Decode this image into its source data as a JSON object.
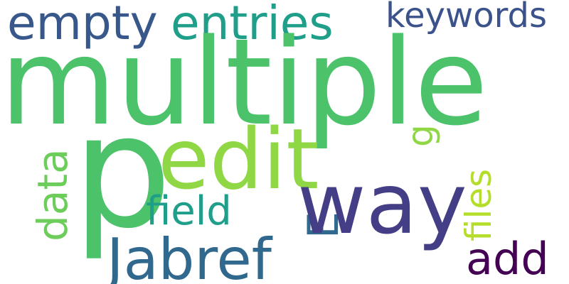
{
  "words": [
    {
      "key": "multiple",
      "text": "multiple",
      "color": "#4cc26b"
    },
    {
      "key": "p",
      "text": "p",
      "color": "#4cc26b"
    },
    {
      "key": "edit",
      "text": "edit",
      "color": "#8fd744"
    },
    {
      "key": "way",
      "text": "way",
      "color": "#433e85"
    },
    {
      "key": "empty",
      "text": "empty",
      "color": "#38588c"
    },
    {
      "key": "entries",
      "text": "entries",
      "color": "#1f9e89"
    },
    {
      "key": "keywords",
      "text": "keywords",
      "color": "#3b528b"
    },
    {
      "key": "jabref",
      "text": "Jabref",
      "color": "#31688e"
    },
    {
      "key": "field",
      "text": "field",
      "color": "#1f9e89"
    },
    {
      "key": "add",
      "text": "add",
      "color": "#440154"
    },
    {
      "key": "data",
      "text": "data",
      "color": "#6ccd5a"
    },
    {
      "key": "files",
      "text": "files",
      "color": "#b5de2b"
    },
    {
      "key": "g",
      "text": "g",
      "color": "#8fd744"
    },
    {
      "key": "e",
      "text": "E",
      "color": "#31688e"
    }
  ]
}
